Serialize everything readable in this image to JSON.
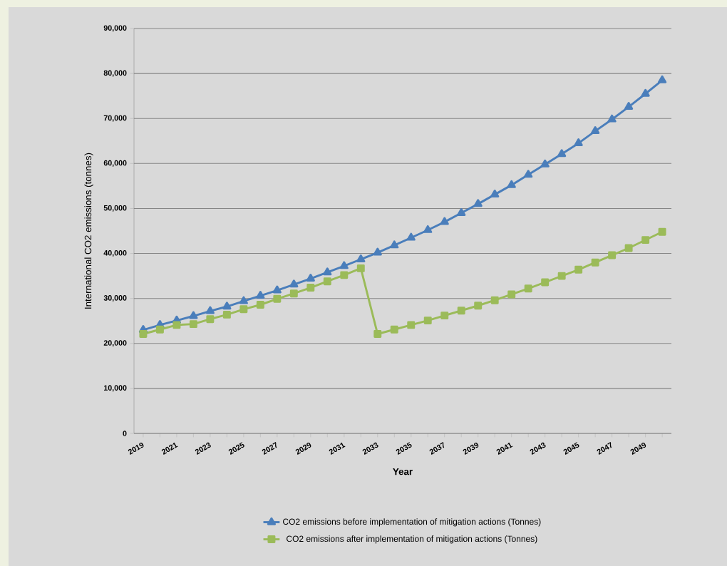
{
  "chart_data": {
    "type": "line",
    "xlabel": "Year",
    "ylabel": "International CO2 emissions (tonnes)",
    "categories": [
      "2019",
      null,
      "2021",
      null,
      "2023",
      null,
      "2025",
      null,
      "2027",
      null,
      "2029",
      null,
      "2031",
      null,
      "2033",
      null,
      "2035",
      null,
      "2037",
      null,
      "2039",
      null,
      "2041",
      null,
      "2043",
      null,
      "2045",
      null,
      "2047",
      null,
      "2049",
      null
    ],
    "series": [
      {
        "name": "CO2 emissions before implementation of mitigation actions (Tonnes)",
        "color": "#4a7ebb",
        "marker": "triangle",
        "values": [
          23000,
          24100,
          25100,
          26100,
          27200,
          28200,
          29400,
          30600,
          31800,
          33100,
          34400,
          35800,
          37200,
          38700,
          40200,
          41800,
          43500,
          45200,
          47000,
          49000,
          51000,
          53100,
          55200,
          57500,
          59800,
          62100,
          64500,
          67200,
          69800,
          72600,
          75500,
          78500
        ]
      },
      {
        "name": "CO2 emissions after implementation of mitigation actions (Tonnes)",
        "color": "#9bbb59",
        "marker": "square",
        "values": [
          22100,
          23100,
          24100,
          24300,
          25400,
          26400,
          27600,
          28600,
          29900,
          31100,
          32400,
          33800,
          35200,
          36700,
          22100,
          23100,
          24100,
          25100,
          26200,
          27300,
          28400,
          29600,
          30900,
          32200,
          33600,
          35000,
          36400,
          38000,
          39600,
          41200,
          43000,
          44800
        ]
      }
    ],
    "ylim": [
      0,
      90000
    ],
    "yticks": [
      0,
      {
        "value": 10000,
        "label": "10,000"
      },
      {
        "value": 20000,
        "label": "20,000"
      },
      {
        "value": 30000,
        "label": "30,000"
      },
      {
        "value": 40000,
        "label": "40,000"
      },
      {
        "value": 50000,
        "label": "50,000"
      },
      {
        "value": 60000,
        "label": "60,000"
      },
      {
        "value": 70000,
        "label": "70,000"
      },
      {
        "value": 80000,
        "label": "80,000"
      },
      {
        "value": 90000,
        "label": "90,000"
      }
    ],
    "grid": "y",
    "legend": "bottom",
    "line_style": "solid"
  }
}
